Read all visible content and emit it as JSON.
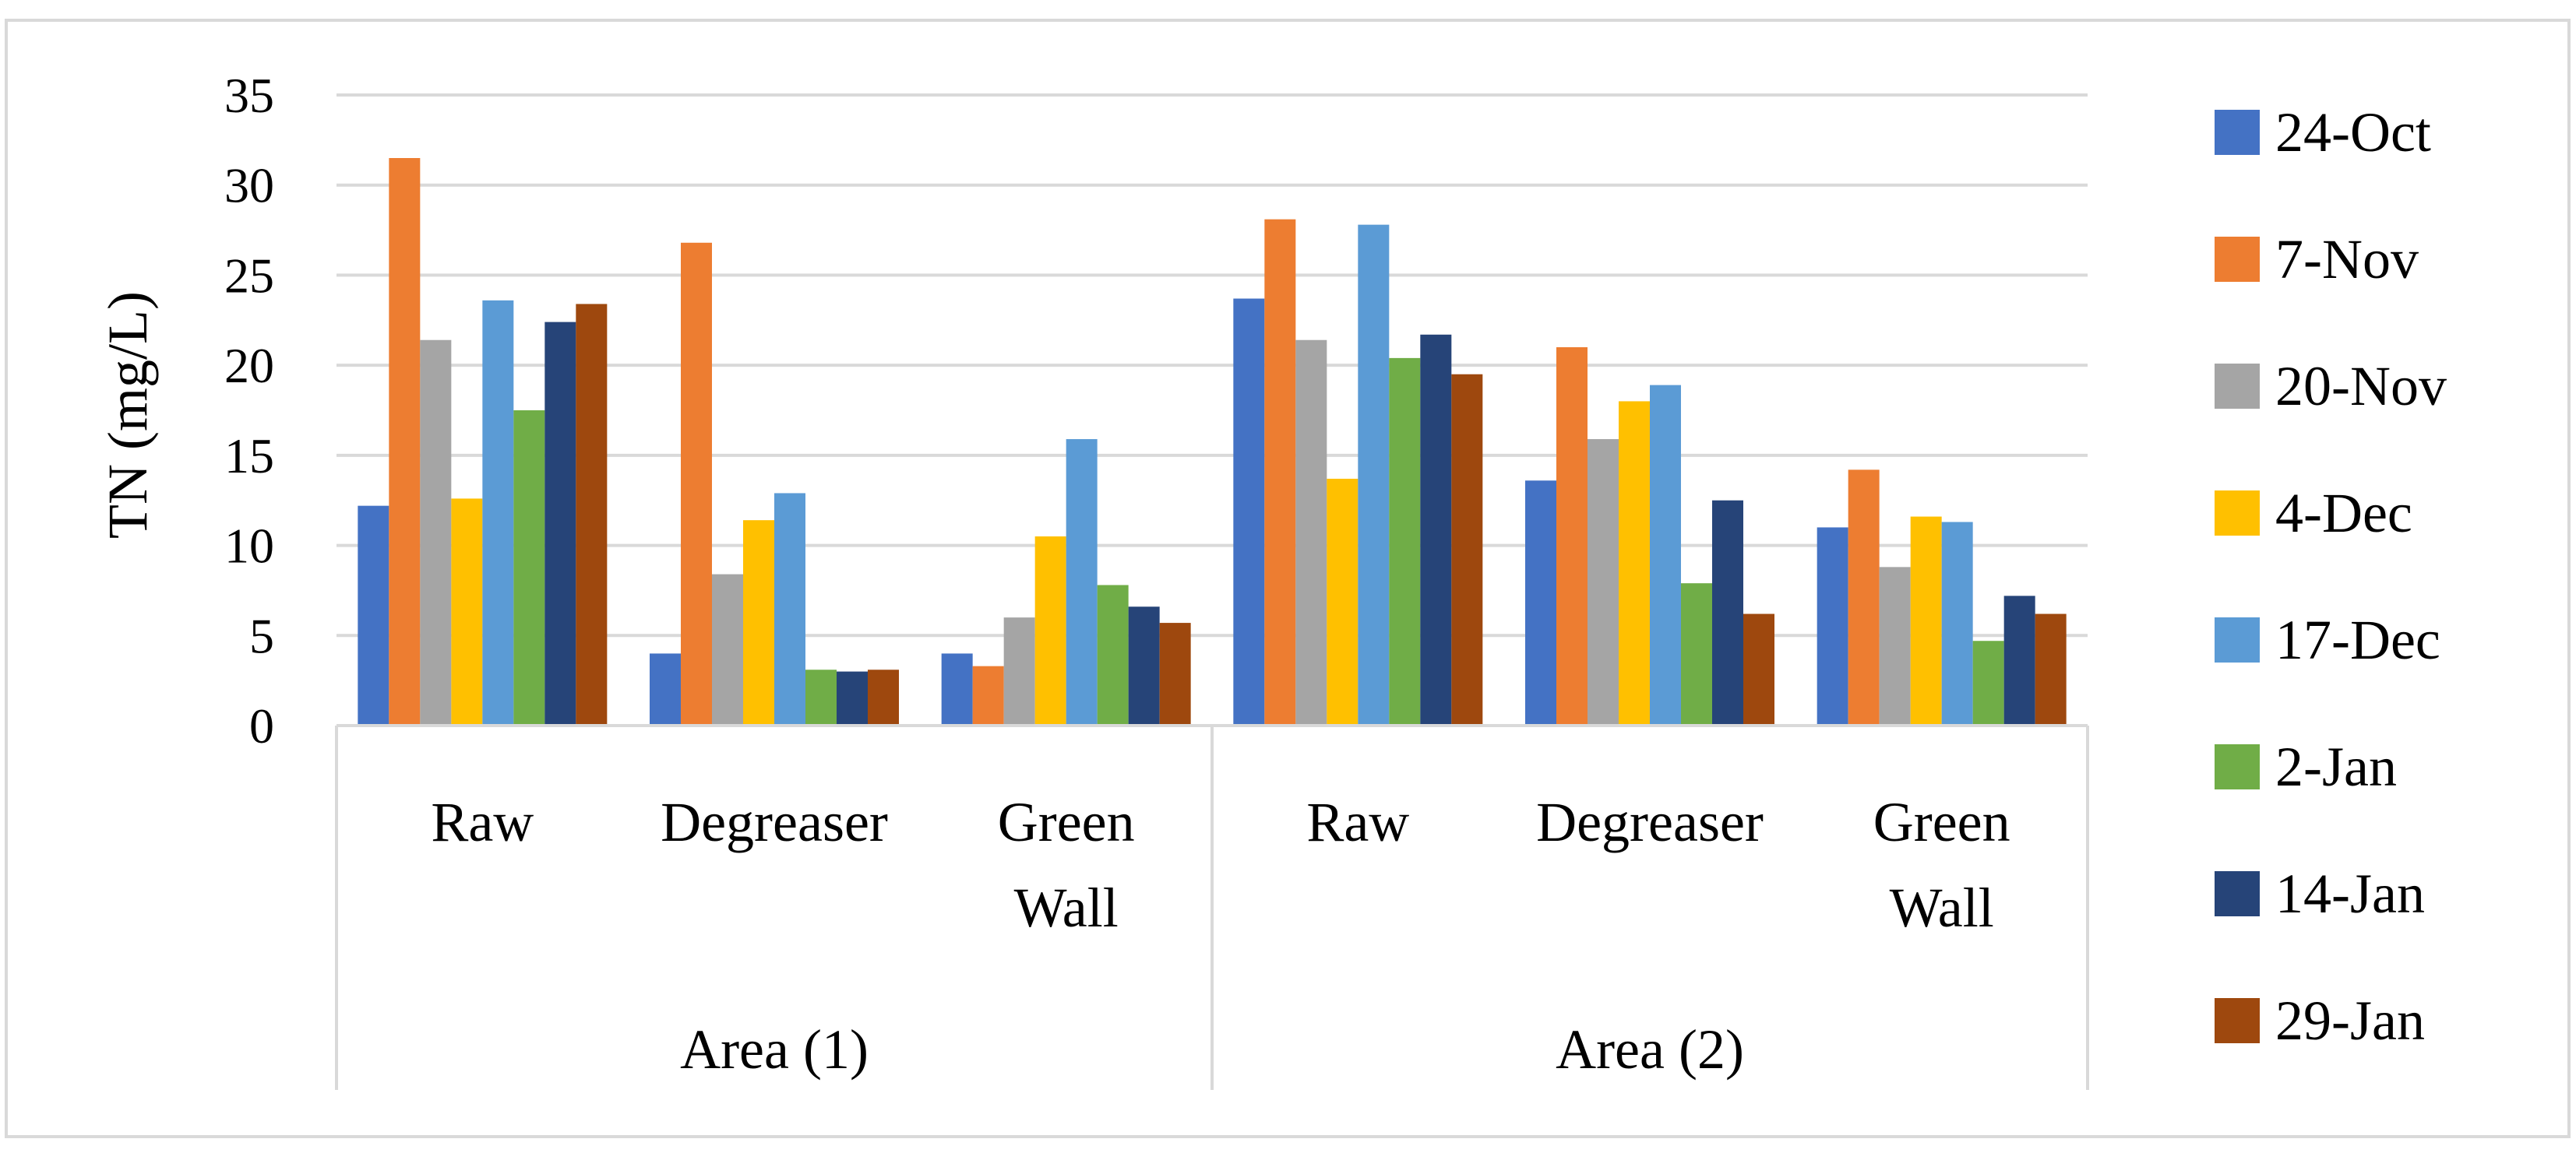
{
  "chart_data": {
    "type": "bar",
    "ylabel": "TN (mg/L)",
    "xlabel": "",
    "title": "",
    "ylim": [
      0,
      35
    ],
    "yticks": [
      0,
      5,
      10,
      15,
      20,
      25,
      30,
      35
    ],
    "grid": true,
    "legend_position": "right",
    "groups": [
      {
        "label": "Area (1)",
        "categories": [
          "Raw",
          "Degreaser",
          "Green Wall"
        ]
      },
      {
        "label": "Area (2)",
        "categories": [
          "Raw",
          "Degreaser",
          "Green Wall"
        ]
      }
    ],
    "categories": [
      "Raw",
      "Degreaser",
      "Green Wall",
      "Raw",
      "Degreaser",
      "Green Wall"
    ],
    "series": [
      {
        "name": "24-Oct",
        "color": "#4472C4",
        "values": [
          12.2,
          4.0,
          4.0,
          23.7,
          13.6,
          11.0
        ]
      },
      {
        "name": "7-Nov",
        "color": "#ED7D31",
        "values": [
          31.5,
          26.8,
          3.3,
          28.1,
          21.0,
          14.2
        ]
      },
      {
        "name": "20-Nov",
        "color": "#A5A5A5",
        "values": [
          21.4,
          8.4,
          6.0,
          21.4,
          15.9,
          8.8
        ]
      },
      {
        "name": "4-Dec",
        "color": "#FFC000",
        "values": [
          12.6,
          11.4,
          10.5,
          13.7,
          18.0,
          11.6
        ]
      },
      {
        "name": "17-Dec",
        "color": "#5B9BD5",
        "values": [
          23.6,
          12.9,
          15.9,
          27.8,
          18.9,
          11.3
        ]
      },
      {
        "name": "2-Jan",
        "color": "#70AD47",
        "values": [
          17.5,
          3.1,
          7.8,
          20.4,
          7.9,
          4.7
        ]
      },
      {
        "name": "14-Jan",
        "color": "#264478",
        "values": [
          22.4,
          3.0,
          6.6,
          21.7,
          12.5,
          7.2
        ]
      },
      {
        "name": "29-Jan",
        "color": "#9E480E",
        "values": [
          23.4,
          3.1,
          5.7,
          19.5,
          6.2,
          6.2
        ]
      }
    ]
  }
}
